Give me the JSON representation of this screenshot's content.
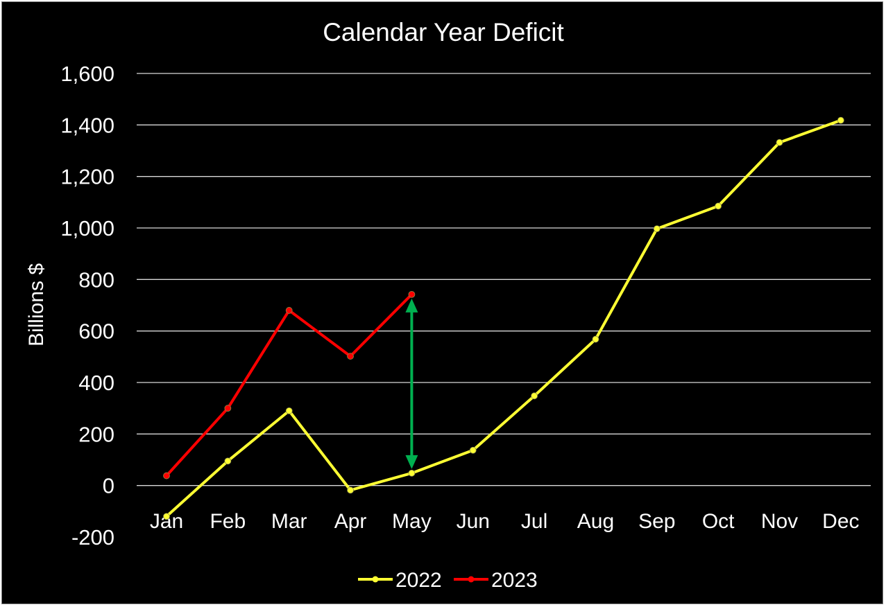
{
  "chart_data": {
    "type": "line",
    "title": "Calendar Year Deficit",
    "xlabel": "",
    "ylabel": "Billions $",
    "categories": [
      "Jan",
      "Feb",
      "Mar",
      "Apr",
      "May",
      "Jun",
      "Jul",
      "Aug",
      "Sep",
      "Oct",
      "Nov",
      "Dec"
    ],
    "ylim": [
      -200,
      1600
    ],
    "yticks": [
      -200,
      0,
      200,
      400,
      600,
      800,
      1000,
      1200,
      1400,
      1600
    ],
    "ytick_labels": [
      "-200",
      "0",
      "200",
      "400",
      "600",
      "800",
      "1,000",
      "1,200",
      "1,400",
      "1,600"
    ],
    "grid": true,
    "legend_position": "bottom",
    "series": [
      {
        "name": "2022",
        "color": "#ffff33",
        "values": [
          -120,
          95,
          290,
          -18,
          48,
          137,
          348,
          568,
          997,
          1085,
          1332,
          1418
        ]
      },
      {
        "name": "2023",
        "color": "#ff0000",
        "values": [
          38,
          300,
          680,
          502,
          742,
          null,
          null,
          null,
          null,
          null,
          null,
          null
        ]
      }
    ],
    "annotations": [
      {
        "type": "double-arrow",
        "color": "#00b050",
        "category": "May",
        "from": 48,
        "to": 742
      }
    ]
  }
}
